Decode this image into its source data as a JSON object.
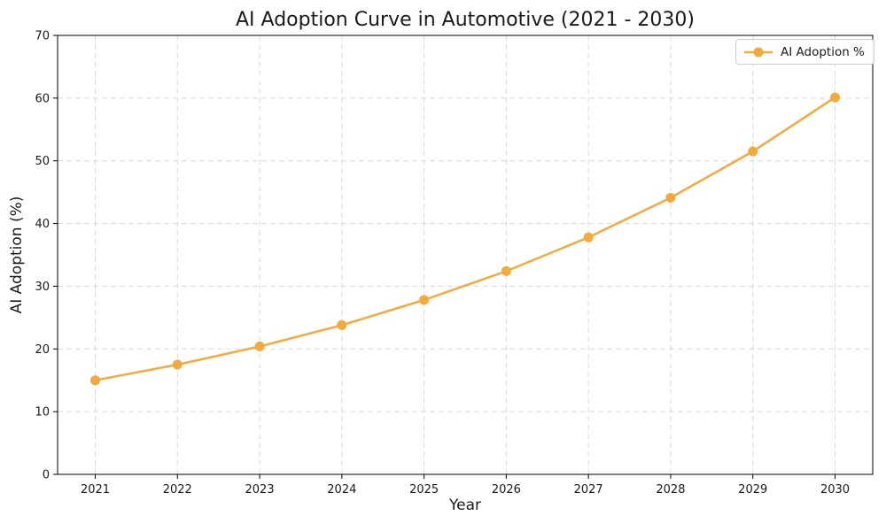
{
  "window": {
    "background": "#ffffff"
  },
  "colors": {
    "grid": "#d9d9d9",
    "spine": "#000000",
    "text": "#1a1a1a",
    "legend_border": "#cccccc"
  },
  "chart_data": {
    "type": "line",
    "title": "AI Adoption Curve in Automotive (2021 - 2030)",
    "xlabel": "Year",
    "ylabel": "AI Adoption (%)",
    "categories": [
      "2021",
      "2022",
      "2023",
      "2024",
      "2025",
      "2026",
      "2027",
      "2028",
      "2029",
      "2030"
    ],
    "series": [
      {
        "name": "AI Adoption %",
        "color": "#F4A93C",
        "marker": "circle",
        "line_style": "solid",
        "values": [
          15.0,
          17.5,
          20.4,
          23.8,
          27.8,
          32.4,
          37.8,
          44.1,
          51.5,
          60.1
        ]
      }
    ],
    "ylim": [
      0,
      70
    ],
    "yticks": [
      0,
      10,
      20,
      30,
      40,
      50,
      60,
      70
    ],
    "grid": true,
    "grid_style": "dashed",
    "legend": {
      "position": "upper right",
      "entries": [
        "AI Adoption %"
      ]
    }
  }
}
